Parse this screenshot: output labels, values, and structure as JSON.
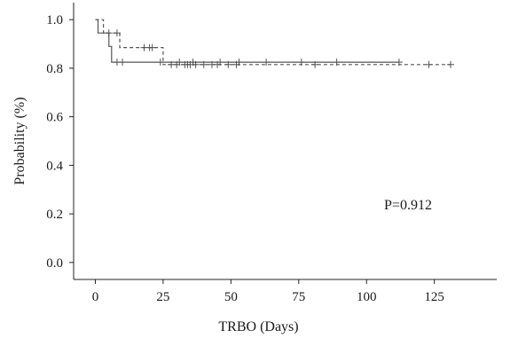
{
  "chart_data": {
    "type": "line",
    "subtype": "kaplan-meier",
    "title": "",
    "xlabel": "TRBO (Days)",
    "ylabel": "Probability (%)",
    "xlim": [
      -8,
      148
    ],
    "ylim": [
      -0.07,
      1.07
    ],
    "x_ticks": [
      0,
      25,
      50,
      75,
      100,
      125
    ],
    "y_ticks": [
      0.0,
      0.2,
      0.4,
      0.6,
      0.8,
      1.0
    ],
    "x_tick_labels": [
      "0",
      "25",
      "50",
      "75",
      "100",
      "125"
    ],
    "y_tick_labels": [
      "0.0",
      "0.2",
      "0.4",
      "0.6",
      "0.8",
      "1.0"
    ],
    "grid": false,
    "annotation": "P=0.912",
    "series": [
      {
        "style": "solid",
        "color": "#555555",
        "steps": [
          [
            0,
            1.0
          ],
          [
            1,
            1.0
          ],
          [
            1,
            0.945
          ],
          [
            5,
            0.945
          ],
          [
            5,
            0.89
          ],
          [
            6,
            0.89
          ],
          [
            6,
            0.825
          ],
          [
            112,
            0.825
          ]
        ],
        "censored": [
          [
            8,
            0.825
          ],
          [
            10,
            0.825
          ],
          [
            24,
            0.825
          ],
          [
            31,
            0.825
          ],
          [
            36,
            0.825
          ],
          [
            46,
            0.825
          ],
          [
            53,
            0.825
          ],
          [
            63,
            0.825
          ],
          [
            76,
            0.825
          ],
          [
            89,
            0.825
          ],
          [
            112,
            0.825
          ]
        ]
      },
      {
        "style": "dashed",
        "color": "#555555",
        "steps": [
          [
            0,
            1.0
          ],
          [
            3,
            1.0
          ],
          [
            3,
            0.945
          ],
          [
            9,
            0.945
          ],
          [
            9,
            0.885
          ],
          [
            25,
            0.885
          ],
          [
            25,
            0.815
          ],
          [
            131,
            0.815
          ]
        ],
        "censored": [
          [
            5,
            0.945
          ],
          [
            8,
            0.945
          ],
          [
            18,
            0.885
          ],
          [
            20,
            0.885
          ],
          [
            21,
            0.885
          ],
          [
            28,
            0.815
          ],
          [
            30,
            0.815
          ],
          [
            33,
            0.815
          ],
          [
            34,
            0.815
          ],
          [
            35,
            0.815
          ],
          [
            37,
            0.815
          ],
          [
            40,
            0.815
          ],
          [
            43,
            0.815
          ],
          [
            45,
            0.815
          ],
          [
            49,
            0.815
          ],
          [
            52,
            0.815
          ],
          [
            81,
            0.815
          ],
          [
            123,
            0.815
          ],
          [
            131,
            0.815
          ]
        ]
      }
    ]
  }
}
